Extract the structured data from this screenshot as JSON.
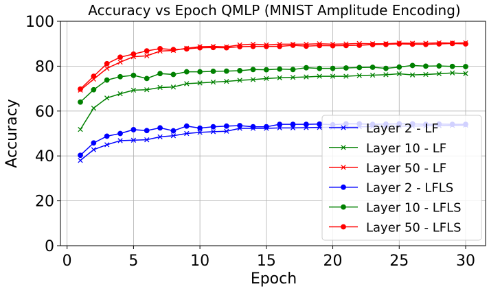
{
  "chart_data": {
    "type": "line",
    "title": "Accuracy vs Epoch QMLP (MNIST Amplitude Encoding)",
    "xlabel": "Epoch",
    "ylabel": "Accuracy",
    "xlim": [
      -0.5,
      31.5
    ],
    "ylim": [
      0,
      100
    ],
    "xticks": [
      0,
      5,
      10,
      15,
      20,
      25,
      30
    ],
    "yticks": [
      0,
      20,
      40,
      60,
      80,
      100
    ],
    "grid": true,
    "legend_position": "lower-right",
    "x": [
      1,
      2,
      3,
      4,
      5,
      6,
      7,
      8,
      9,
      10,
      11,
      12,
      13,
      14,
      15,
      16,
      17,
      18,
      19,
      20,
      21,
      22,
      23,
      24,
      25,
      26,
      27,
      28,
      29,
      30
    ],
    "series": [
      {
        "name": "Layer 2 - LF",
        "color": "#0000ff",
        "marker": "x",
        "values": [
          38.0,
          42.8,
          45.0,
          46.8,
          47.0,
          47.2,
          48.5,
          49.0,
          50.0,
          50.5,
          50.8,
          51.0,
          52.3,
          52.3,
          52.3,
          52.5,
          52.5,
          52.6,
          52.7,
          52.8,
          52.9,
          53.0,
          53.1,
          53.2,
          53.3,
          53.3,
          53.4,
          53.5,
          53.6,
          53.7
        ]
      },
      {
        "name": "Layer 10 - LF",
        "color": "#008000",
        "marker": "x",
        "values": [
          51.8,
          61.3,
          65.8,
          67.7,
          69.3,
          69.5,
          70.5,
          70.7,
          72.2,
          72.5,
          72.9,
          73.2,
          73.7,
          74.0,
          74.5,
          74.8,
          75.0,
          75.2,
          75.5,
          75.5,
          75.5,
          75.8,
          76.0,
          76.2,
          76.6,
          76.1,
          76.3,
          76.6,
          77.0,
          76.7
        ]
      },
      {
        "name": "Layer 50 - LF",
        "color": "#ff0000",
        "marker": "x",
        "values": [
          69.3,
          74.2,
          79.0,
          81.8,
          84.2,
          84.6,
          86.7,
          87.0,
          88.0,
          88.7,
          88.8,
          88.6,
          89.5,
          89.8,
          89.5,
          89.8,
          89.8,
          89.8,
          90.0,
          89.8,
          89.9,
          90.1,
          90.0,
          90.0,
          90.3,
          90.2,
          90.2,
          90.4,
          90.3,
          90.4
        ]
      },
      {
        "name": "Layer 2 - LFLS",
        "color": "#0000ff",
        "marker": "o",
        "values": [
          40.3,
          45.8,
          48.8,
          50.0,
          51.7,
          51.3,
          52.5,
          51.2,
          53.3,
          52.4,
          53.0,
          53.3,
          53.5,
          53.0,
          53.0,
          54.1,
          54.1,
          54.1,
          54.2,
          53.9,
          54.3,
          54.3,
          54.1,
          54.2,
          54.3,
          54.3,
          54.1,
          54.2,
          54.1,
          54.1
        ]
      },
      {
        "name": "Layer 10 - LFLS",
        "color": "#008000",
        "marker": "o",
        "values": [
          64.0,
          69.5,
          73.8,
          75.3,
          75.9,
          74.5,
          76.7,
          76.3,
          77.5,
          77.5,
          77.7,
          77.8,
          78.0,
          78.5,
          78.4,
          78.7,
          78.5,
          79.3,
          79.0,
          79.0,
          79.2,
          79.4,
          79.5,
          79.0,
          79.6,
          80.3,
          80.0,
          80.1,
          79.9,
          79.8
        ]
      },
      {
        "name": "Layer 50 - LFLS",
        "color": "#ff0000",
        "marker": "o",
        "values": [
          69.8,
          75.5,
          81.1,
          84.0,
          85.4,
          86.8,
          87.8,
          87.4,
          87.7,
          88.2,
          88.3,
          88.2,
          88.7,
          88.8,
          88.8,
          88.8,
          89.3,
          88.9,
          89.2,
          89.1,
          89.2,
          89.3,
          89.6,
          89.7,
          89.9,
          89.8,
          89.7,
          89.9,
          90.1,
          89.9
        ]
      }
    ]
  }
}
